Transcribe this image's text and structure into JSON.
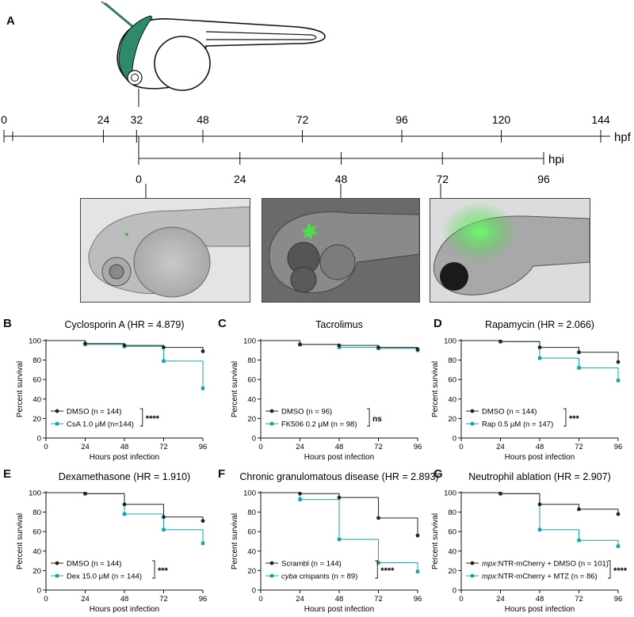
{
  "figure": {
    "panel_labels": [
      "A",
      "B",
      "C",
      "D",
      "E",
      "F",
      "G"
    ]
  },
  "timeline": {
    "hpf_ticks": [
      "0",
      "24",
      "32",
      "48",
      "72",
      "96",
      "120",
      "144"
    ],
    "hpf_unit": "hpf",
    "hpi_ticks": [
      "0",
      "24",
      "48",
      "72",
      "96"
    ],
    "hpi_unit": "hpi"
  },
  "colors": {
    "dmso": "#222222",
    "treatment": "#1aa0a4",
    "injection": "#2e8b6a"
  },
  "chart_data": [
    {
      "id": "B",
      "type": "line",
      "step": true,
      "title": "Cyclosporin A (HR = 4.879)",
      "xlabel": "Hours post infection",
      "ylabel": "Percent survival",
      "xlim": [
        0,
        96
      ],
      "ylim": [
        0,
        100
      ],
      "xticks": [
        0,
        24,
        48,
        72,
        96
      ],
      "yticks": [
        0,
        20,
        40,
        60,
        80,
        100
      ],
      "legend": "bottom-left",
      "significance": "****",
      "series": [
        {
          "name": "DMSO (n = 144)",
          "x": [
            0,
            24,
            48,
            72,
            96
          ],
          "y": [
            100,
            97,
            95,
            93,
            89
          ]
        },
        {
          "name": "CsA 1.0 μM (n=144)",
          "x": [
            0,
            24,
            48,
            72,
            96
          ],
          "y": [
            100,
            96,
            94,
            79,
            51
          ]
        }
      ]
    },
    {
      "id": "C",
      "type": "line",
      "step": true,
      "title": "Tacrolimus",
      "xlabel": "Hours post infection",
      "ylabel": "Percent survival",
      "xlim": [
        0,
        96
      ],
      "ylim": [
        0,
        100
      ],
      "xticks": [
        0,
        24,
        48,
        72,
        96
      ],
      "yticks": [
        0,
        20,
        40,
        60,
        80,
        100
      ],
      "legend": "bottom-left",
      "significance": "ns",
      "series": [
        {
          "name": "DMSO (n = 96)",
          "x": [
            0,
            24,
            48,
            72,
            96
          ],
          "y": [
            100,
            96,
            95,
            93,
            91
          ]
        },
        {
          "name": "FK506 0.2 μM (n = 98)",
          "x": [
            0,
            24,
            48,
            72,
            96
          ],
          "y": [
            100,
            96,
            93,
            92,
            90
          ]
        }
      ]
    },
    {
      "id": "D",
      "type": "line",
      "step": true,
      "title": "Rapamycin (HR = 2.066)",
      "xlabel": "Hours post infection",
      "ylabel": "Percent survival",
      "xlim": [
        0,
        96
      ],
      "ylim": [
        0,
        100
      ],
      "xticks": [
        0,
        24,
        48,
        72,
        96
      ],
      "yticks": [
        0,
        20,
        40,
        60,
        80,
        100
      ],
      "legend": "bottom-left",
      "significance": "***",
      "series": [
        {
          "name": "DMSO (n = 144)",
          "x": [
            0,
            24,
            48,
            72,
            96
          ],
          "y": [
            100,
            99,
            93,
            88,
            78
          ]
        },
        {
          "name": "Rap 0.5 μM (n = 147)",
          "x": [
            0,
            24,
            48,
            72,
            96
          ],
          "y": [
            100,
            99,
            82,
            72,
            59
          ]
        }
      ]
    },
    {
      "id": "E",
      "type": "line",
      "step": true,
      "title": "Dexamethasone (HR = 1.910)",
      "xlabel": "Hours post infection",
      "ylabel": "Percent survival",
      "xlim": [
        0,
        96
      ],
      "ylim": [
        0,
        100
      ],
      "xticks": [
        0,
        24,
        48,
        72,
        96
      ],
      "yticks": [
        0,
        20,
        40,
        60,
        80,
        100
      ],
      "legend": "bottom-left",
      "significance": "***",
      "series": [
        {
          "name": "DMSO (n = 144)",
          "x": [
            0,
            24,
            48,
            72,
            96
          ],
          "y": [
            100,
            99,
            88,
            75,
            71
          ]
        },
        {
          "name": "Dex 15.0 μM (n = 144)",
          "x": [
            0,
            24,
            48,
            72,
            96
          ],
          "y": [
            100,
            99,
            78,
            62,
            48
          ]
        }
      ]
    },
    {
      "id": "F",
      "type": "line",
      "step": true,
      "title": "Chronic granulomatous disease (HR = 2.893)",
      "xlabel": "Hours post infection",
      "ylabel": "Percent survival",
      "xlim": [
        0,
        96
      ],
      "ylim": [
        0,
        100
      ],
      "xticks": [
        0,
        24,
        48,
        72,
        96
      ],
      "yticks": [
        0,
        20,
        40,
        60,
        80,
        100
      ],
      "legend": "bottom-left",
      "significance": "****",
      "series": [
        {
          "name": "Scrambl (n = 144)",
          "x": [
            0,
            24,
            48,
            72,
            96
          ],
          "y": [
            100,
            99,
            95,
            74,
            56
          ]
        },
        {
          "name": "cyba crispants (n = 89)",
          "x": [
            0,
            24,
            48,
            72,
            96
          ],
          "y": [
            100,
            93,
            52,
            28,
            19
          ]
        }
      ]
    },
    {
      "id": "G",
      "type": "line",
      "step": true,
      "title": "Neutrophil ablation (HR = 2.907)",
      "xlabel": "Hours post infection",
      "ylabel": "Percent survival",
      "xlim": [
        0,
        96
      ],
      "ylim": [
        0,
        100
      ],
      "xticks": [
        0,
        24,
        48,
        72,
        96
      ],
      "yticks": [
        0,
        20,
        40,
        60,
        80,
        100
      ],
      "legend": "bottom-left",
      "significance": "****",
      "series": [
        {
          "name": "mpx:NTR-mCherry + DMSO (n = 101)",
          "x": [
            0,
            24,
            48,
            72,
            96
          ],
          "y": [
            100,
            99,
            88,
            83,
            78
          ]
        },
        {
          "name": "mpx:NTR-mCherry + MTZ (n = 86)",
          "x": [
            0,
            24,
            48,
            72,
            96
          ],
          "y": [
            100,
            99,
            62,
            51,
            45
          ]
        }
      ]
    }
  ]
}
